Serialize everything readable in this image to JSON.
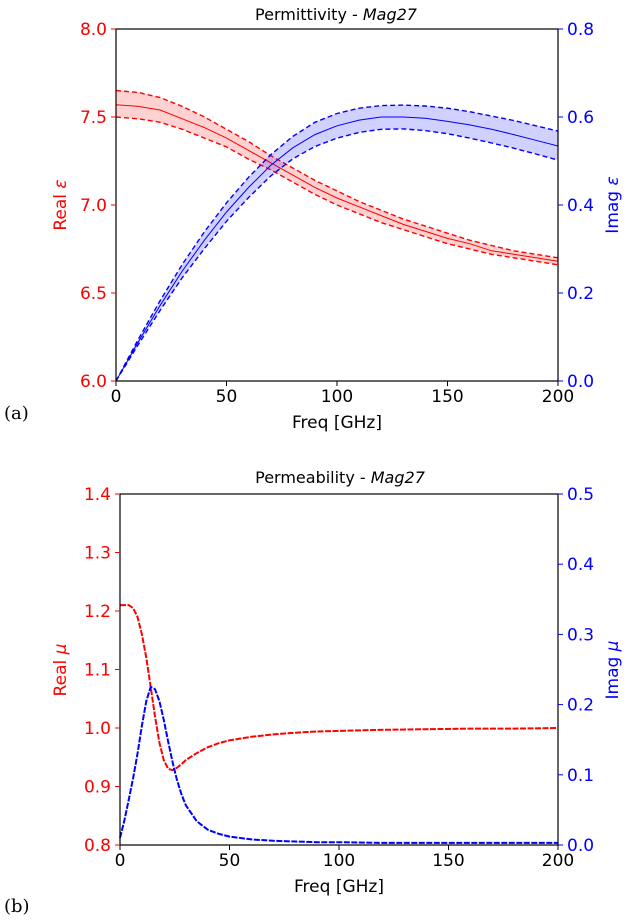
{
  "chart_data": [
    {
      "type": "line",
      "title_main": "Permittivity - ",
      "title_italic": "Mag27",
      "xlabel": "Freq [GHz]",
      "ylabel_left_main": "Real ",
      "ylabel_left_symbol": "ε",
      "ylabel_right_main": "Imag ",
      "ylabel_right_symbol": "ε",
      "panel_label": "(a)",
      "xlim": [
        0,
        200
      ],
      "ylim_left": [
        6.0,
        8.0
      ],
      "ylim_right": [
        0.0,
        0.8
      ],
      "x_ticks": [
        "0",
        "50",
        "100",
        "150",
        "200"
      ],
      "y_ticks_left": [
        "6.0",
        "6.5",
        "7.0",
        "7.5",
        "8.0"
      ],
      "y_ticks_right": [
        "0.0",
        "0.2",
        "0.4",
        "0.6",
        "0.8"
      ],
      "left_color": "#ff0000",
      "right_color": "#0000ff",
      "series": [
        {
          "axis": "left",
          "x": [
            0,
            10,
            20,
            30,
            40,
            50,
            60,
            70,
            80,
            90,
            100,
            110,
            120,
            130,
            140,
            150,
            160,
            170,
            180,
            190,
            200
          ],
          "y_mid": [
            7.57,
            7.56,
            7.54,
            7.49,
            7.44,
            7.38,
            7.31,
            7.24,
            7.17,
            7.1,
            7.04,
            6.99,
            6.94,
            6.89,
            6.85,
            6.81,
            6.78,
            6.74,
            6.72,
            6.7,
            6.68
          ],
          "y_upper": [
            7.65,
            7.64,
            7.61,
            7.56,
            7.5,
            7.43,
            7.36,
            7.28,
            7.21,
            7.14,
            7.08,
            7.02,
            6.97,
            6.92,
            6.88,
            6.84,
            6.8,
            6.77,
            6.74,
            6.72,
            6.7
          ],
          "y_lower": [
            7.5,
            7.49,
            7.47,
            7.43,
            7.38,
            7.33,
            7.26,
            7.2,
            7.13,
            7.06,
            7.0,
            6.95,
            6.9,
            6.86,
            6.82,
            6.78,
            6.75,
            6.72,
            6.7,
            6.68,
            6.66
          ]
        },
        {
          "axis": "right",
          "x": [
            0,
            10,
            20,
            30,
            40,
            50,
            60,
            70,
            80,
            90,
            100,
            110,
            120,
            130,
            140,
            150,
            160,
            170,
            180,
            190,
            200
          ],
          "y_mid": [
            0.0,
            0.088,
            0.172,
            0.25,
            0.32,
            0.384,
            0.44,
            0.49,
            0.53,
            0.56,
            0.58,
            0.593,
            0.6,
            0.6,
            0.597,
            0.59,
            0.582,
            0.572,
            0.56,
            0.547,
            0.534
          ],
          "y_upper": [
            0.0,
            0.094,
            0.183,
            0.265,
            0.339,
            0.405,
            0.463,
            0.514,
            0.556,
            0.588,
            0.608,
            0.62,
            0.626,
            0.627,
            0.625,
            0.62,
            0.612,
            0.602,
            0.592,
            0.58,
            0.568
          ],
          "y_lower": [
            0.0,
            0.082,
            0.161,
            0.235,
            0.301,
            0.363,
            0.417,
            0.466,
            0.505,
            0.533,
            0.552,
            0.565,
            0.572,
            0.573,
            0.569,
            0.562,
            0.552,
            0.541,
            0.529,
            0.516,
            0.502
          ]
        }
      ]
    },
    {
      "type": "line",
      "title_main": "Permeability - ",
      "title_italic": "Mag27",
      "xlabel": "Freq [GHz]",
      "ylabel_left_main": "Real ",
      "ylabel_left_symbol": "μ",
      "ylabel_right_main": "Imag ",
      "ylabel_right_symbol": "μ",
      "panel_label": "(b)",
      "xlim": [
        0,
        200
      ],
      "ylim_left": [
        0.8,
        1.4
      ],
      "ylim_right": [
        0.0,
        0.5
      ],
      "x_ticks": [
        "0",
        "50",
        "100",
        "150",
        "200"
      ],
      "y_ticks_left": [
        "0.8",
        "0.9",
        "1.0",
        "1.1",
        "1.2",
        "1.3",
        "1.4"
      ],
      "y_ticks_right": [
        "0.0",
        "0.1",
        "0.2",
        "0.3",
        "0.4",
        "0.5"
      ],
      "left_color": "#ff0000",
      "right_color": "#0000ff",
      "series": [
        {
          "axis": "left",
          "x": [
            0,
            2,
            4,
            6,
            8,
            10,
            12,
            14,
            16,
            18,
            20,
            22,
            24,
            26,
            28,
            30,
            35,
            40,
            45,
            50,
            60,
            70,
            80,
            90,
            100,
            120,
            140,
            160,
            180,
            200
          ],
          "y_mid": [
            1.21,
            1.21,
            1.21,
            1.205,
            1.19,
            1.16,
            1.12,
            1.07,
            1.02,
            0.975,
            0.945,
            0.93,
            0.928,
            0.932,
            0.938,
            0.945,
            0.957,
            0.967,
            0.974,
            0.979,
            0.985,
            0.989,
            0.992,
            0.994,
            0.995,
            0.997,
            0.998,
            0.999,
            0.999,
            1.0
          ]
        },
        {
          "axis": "right",
          "x": [
            0,
            2,
            4,
            6,
            8,
            10,
            12,
            14,
            16,
            18,
            20,
            22,
            24,
            26,
            28,
            30,
            35,
            40,
            45,
            50,
            60,
            70,
            80,
            90,
            100,
            120,
            140,
            160,
            180,
            200
          ],
          "y_mid": [
            0.01,
            0.035,
            0.065,
            0.095,
            0.13,
            0.17,
            0.205,
            0.225,
            0.222,
            0.205,
            0.178,
            0.147,
            0.118,
            0.093,
            0.073,
            0.057,
            0.034,
            0.022,
            0.016,
            0.012,
            0.008,
            0.006,
            0.005,
            0.004,
            0.004,
            0.003,
            0.003,
            0.003,
            0.003,
            0.003
          ]
        }
      ]
    }
  ]
}
